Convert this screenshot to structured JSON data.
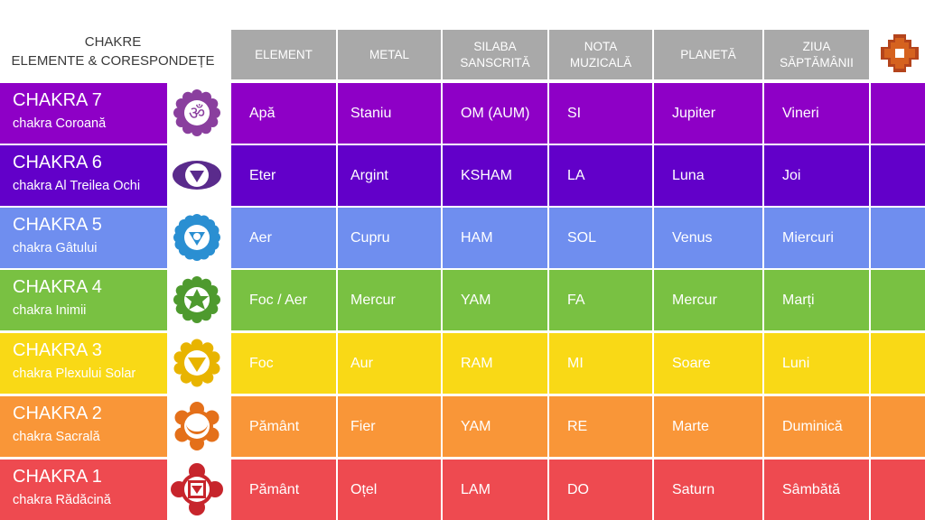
{
  "title": {
    "line1": "CHAKRE",
    "line2": "ELEMENTE & CORESPONDEȚE"
  },
  "headers": [
    {
      "line1": "ELEMENT",
      "line2": ""
    },
    {
      "line1": "METAL",
      "line2": ""
    },
    {
      "line1": "SILABA",
      "line2": "SANSCRITĂ"
    },
    {
      "line1": "NOTA",
      "line2": "MUZICALĂ"
    },
    {
      "line1": "PLANETĂ",
      "line2": ""
    },
    {
      "line1": "ZIUA",
      "line2": "SĂPTĂMÂNII"
    }
  ],
  "header_color": "#a9a9a9",
  "logo_icon": "chakana-cross-icon",
  "rows": [
    {
      "name": "CHAKRA 7",
      "subtitle": "chakra Coroană",
      "icon": "crown-chakra-om-icon",
      "color": "#8e00c6",
      "symbol_color": "#8a3f9e",
      "cells": [
        "Apă",
        "Staniu",
        "OM (AUM)",
        "SI",
        "Jupiter",
        "Vineri"
      ]
    },
    {
      "name": "CHAKRA 6",
      "subtitle": "chakra Al Treilea Ochi",
      "icon": "third-eye-chakra-icon",
      "color": "#6200c9",
      "symbol_color": "#5a2b8c",
      "cells": [
        "Eter",
        "Argint",
        "KSHAM",
        "LA",
        "Luna",
        "Joi"
      ]
    },
    {
      "name": "CHAKRA 5",
      "subtitle": "chakra Gâtului",
      "icon": "throat-chakra-icon",
      "color": "#6f8eef",
      "symbol_color": "#2a8fd2",
      "cells": [
        "Aer",
        "Cupru",
        "HAM",
        "SOL",
        "Venus",
        "Miercuri"
      ]
    },
    {
      "name": "CHAKRA 4",
      "subtitle": "chakra Inimii",
      "icon": "heart-chakra-icon",
      "color": "#79c142",
      "symbol_color": "#4e9a2e",
      "cells": [
        "Foc / Aer",
        "Mercur",
        "YAM",
        "FA",
        "Mercur",
        "Marți"
      ]
    },
    {
      "name": "CHAKRA 3",
      "subtitle": "chakra Plexului Solar",
      "icon": "solar-plexus-chakra-icon",
      "color": "#f9d916",
      "symbol_color": "#e8b400",
      "cells": [
        "Foc",
        "Aur",
        "RAM",
        "MI",
        "Soare",
        "Luni"
      ]
    },
    {
      "name": "CHAKRA 2",
      "subtitle": "chakra Sacrală",
      "icon": "sacral-chakra-icon",
      "color": "#f99638",
      "symbol_color": "#e4701a",
      "cells": [
        "Pământ",
        "Fier",
        "YAM",
        "RE",
        "Marte",
        "Duminică"
      ]
    },
    {
      "name": "CHAKRA 1",
      "subtitle": "chakra Rădăcină",
      "icon": "root-chakra-icon",
      "color": "#ee4a50",
      "symbol_color": "#c7252c",
      "cells": [
        "Pământ",
        "Oțel",
        "LAM",
        "DO",
        "Saturn",
        "Sâmbătă"
      ]
    }
  ]
}
